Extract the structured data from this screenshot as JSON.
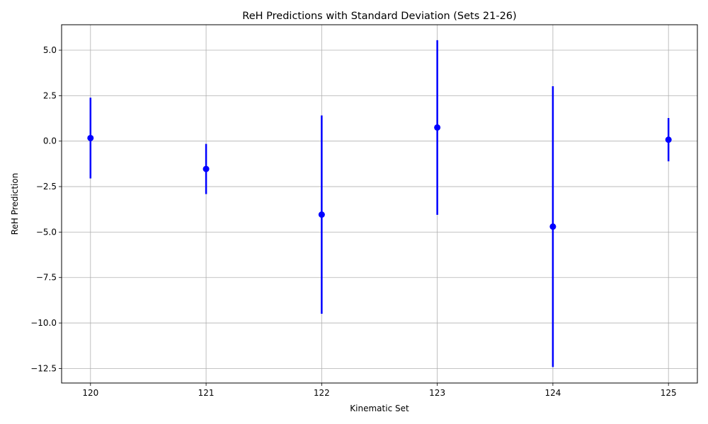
{
  "chart_data": {
    "type": "scatter",
    "title": "ReH Predictions with Standard Deviation (Sets 21-26)",
    "xlabel": "Kinematic Set",
    "ylabel": "ReH Prediction",
    "x": [
      120,
      121,
      122,
      123,
      124,
      125
    ],
    "y": [
      0.17,
      -1.53,
      -4.04,
      0.75,
      -4.7,
      0.08
    ],
    "yerr": [
      2.22,
      1.38,
      5.45,
      4.8,
      7.72,
      1.19
    ],
    "xlim": [
      119.75,
      125.25
    ],
    "ylim": [
      -13.3,
      6.4
    ],
    "xticks": [
      120,
      121,
      122,
      123,
      124,
      125
    ],
    "yticks": [
      5.0,
      2.5,
      0.0,
      -2.5,
      -5.0,
      -7.5,
      -10.0,
      -12.5
    ],
    "xtick_labels": [
      "120",
      "121",
      "122",
      "123",
      "124",
      "125"
    ],
    "ytick_labels": [
      "5.0",
      "2.5",
      "0.0",
      "−2.5",
      "−5.0",
      "−7.5",
      "−10.0",
      "−12.5"
    ],
    "grid": true,
    "marker_color": "#0000ff",
    "grid_color": "#b0b0b0"
  }
}
